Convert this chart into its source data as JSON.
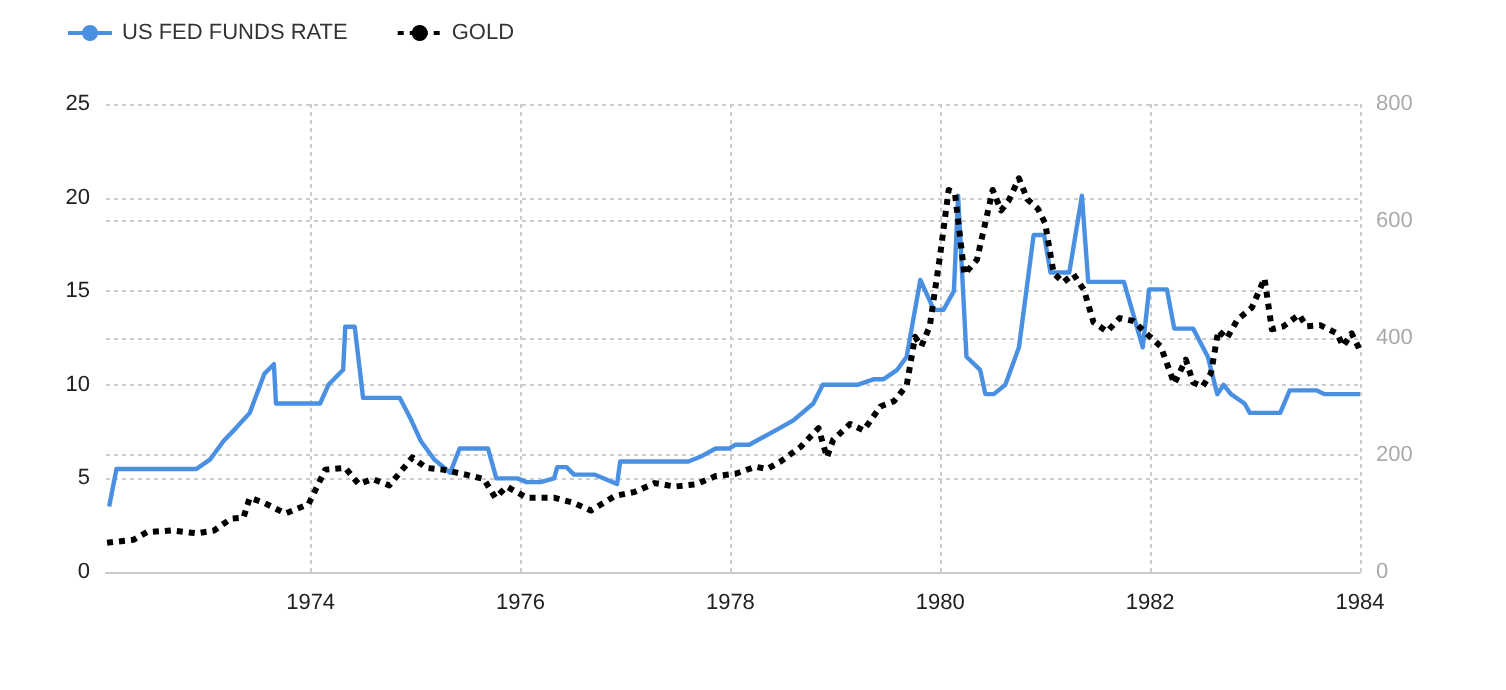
{
  "chart_data": {
    "type": "line",
    "legend": "top left",
    "grid": true,
    "marker": "none",
    "xlim": [
      1972.05,
      1984
    ],
    "xticks": [
      1974,
      1976,
      1978,
      1980,
      1982,
      1984
    ],
    "ylim": [
      0,
      25
    ],
    "yticks": [
      0,
      5,
      10,
      15,
      20,
      25
    ],
    "y2lim": [
      0,
      800
    ],
    "y2ticks": [
      0,
      200,
      400,
      600,
      800
    ],
    "series": [
      {
        "name": "US FED FUNDS RATE",
        "color": "#4a90e2",
        "line_style": "solid",
        "x": [
          1972.08,
          1972.15,
          1972.91,
          1973.04,
          1973.17,
          1973.29,
          1973.42,
          1973.56,
          1973.65,
          1973.67,
          1974.09,
          1974.17,
          1974.31,
          1974.33,
          1974.42,
          1974.5,
          1974.85,
          1974.96,
          1975.05,
          1975.18,
          1975.33,
          1975.42,
          1975.69,
          1975.77,
          1975.97,
          1976.06,
          1976.19,
          1976.32,
          1976.35,
          1976.44,
          1976.51,
          1976.71,
          1976.92,
          1976.95,
          1977.6,
          1977.73,
          1977.86,
          1977.99,
          1978.05,
          1978.18,
          1978.31,
          1978.41,
          1978.6,
          1978.79,
          1978.88,
          1979.21,
          1979.37,
          1979.46,
          1979.59,
          1979.68,
          1979.81,
          1979.94,
          1980.03,
          1980.13,
          1980.17,
          1980.25,
          1980.38,
          1980.43,
          1980.51,
          1980.62,
          1980.75,
          1980.89,
          1980.99,
          1981.05,
          1981.23,
          1981.35,
          1981.41,
          1981.75,
          1981.93,
          1981.99,
          1982.16,
          1982.23,
          1982.41,
          1982.55,
          1982.64,
          1982.7,
          1982.77,
          1982.9,
          1982.95,
          1983.24,
          1983.33,
          1983.59,
          1983.66,
          1984.0
        ],
        "values": [
          3.5,
          5.5,
          5.5,
          6.0,
          7.0,
          7.7,
          8.5,
          10.6,
          11.1,
          9.0,
          9.0,
          10.0,
          10.8,
          13.1,
          13.1,
          9.3,
          9.3,
          8.1,
          7.0,
          6.0,
          5.3,
          6.6,
          6.6,
          5.0,
          5.0,
          4.8,
          4.8,
          5.0,
          5.6,
          5.6,
          5.2,
          5.2,
          4.7,
          5.9,
          5.9,
          6.2,
          6.6,
          6.6,
          6.8,
          6.8,
          7.2,
          7.5,
          8.1,
          9.0,
          10.0,
          10.0,
          10.3,
          10.3,
          10.8,
          11.5,
          15.6,
          14.0,
          14.0,
          15.0,
          20.1,
          11.5,
          10.8,
          9.5,
          9.5,
          10.0,
          12.0,
          18.0,
          18.0,
          16.0,
          16.0,
          20.1,
          15.5,
          15.5,
          12.0,
          15.1,
          15.1,
          13.0,
          13.0,
          11.5,
          9.5,
          10.0,
          9.5,
          9.0,
          8.5,
          8.5,
          9.7,
          9.7,
          9.5,
          9.5
        ]
      },
      {
        "name": "GOLD",
        "color": "#000000",
        "line_style": "dotted",
        "axis": "y2",
        "x": [
          1972.06,
          1972.31,
          1972.44,
          1972.67,
          1972.92,
          1973.08,
          1973.24,
          1973.36,
          1973.42,
          1973.56,
          1973.76,
          1973.98,
          1974.14,
          1974.33,
          1974.46,
          1974.59,
          1974.75,
          1974.97,
          1975.1,
          1975.26,
          1975.49,
          1975.65,
          1975.76,
          1975.87,
          1976.06,
          1976.32,
          1976.51,
          1976.67,
          1976.9,
          1977.09,
          1977.28,
          1977.47,
          1977.67,
          1977.86,
          1978.05,
          1978.24,
          1978.35,
          1978.48,
          1978.67,
          1978.84,
          1978.92,
          1978.98,
          1979.14,
          1979.27,
          1979.43,
          1979.56,
          1979.68,
          1979.76,
          1979.82,
          1979.9,
          1980.0,
          1980.08,
          1980.14,
          1980.23,
          1980.35,
          1980.5,
          1980.58,
          1980.65,
          1980.75,
          1980.83,
          1980.93,
          1981.0,
          1981.08,
          1981.17,
          1981.27,
          1981.37,
          1981.46,
          1981.59,
          1981.71,
          1981.84,
          1982.0,
          1982.1,
          1982.23,
          1982.34,
          1982.41,
          1982.5,
          1982.58,
          1982.65,
          1982.73,
          1982.83,
          1982.97,
          1983.09,
          1983.16,
          1983.27,
          1983.42,
          1983.49,
          1983.62,
          1983.78,
          1983.84,
          1983.92,
          1984.0
        ],
        "values": [
          50,
          55,
          68,
          71,
          66,
          71,
          91,
          93,
          127,
          118,
          100,
          116,
          175,
          178,
          150,
          159,
          148,
          196,
          178,
          175,
          166,
          159,
          127,
          146,
          127,
          127,
          118,
          105,
          130,
          137,
          152,
          146,
          150,
          164,
          168,
          180,
          176,
          189,
          214,
          246,
          196,
          226,
          253,
          242,
          283,
          292,
          319,
          402,
          386,
          420,
          543,
          653,
          648,
          509,
          534,
          653,
          618,
          634,
          673,
          637,
          621,
          596,
          511,
          495,
          509,
          482,
          427,
          411,
          434,
          429,
          402,
          386,
          322,
          363,
          324,
          317,
          340,
          413,
          399,
          431,
          452,
          502,
          415,
          420,
          440,
          420,
          422,
          408,
          386,
          408,
          379
        ]
      }
    ]
  }
}
